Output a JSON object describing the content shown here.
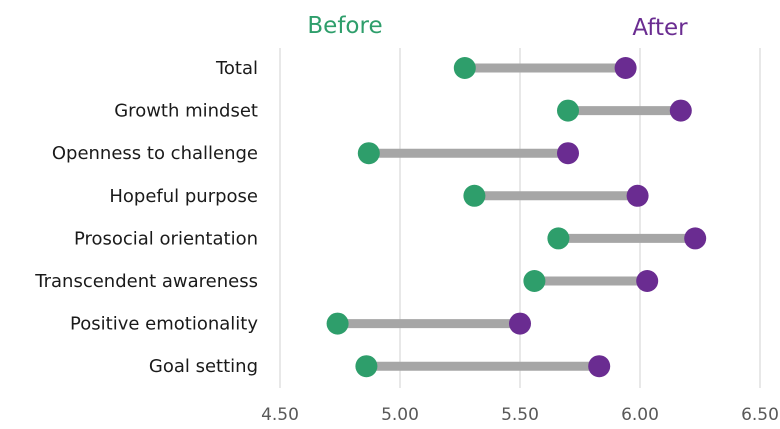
{
  "chart_data": {
    "type": "dumbbell",
    "title": "",
    "xlabel": "",
    "ylabel": "",
    "xlim": [
      4.5,
      6.5
    ],
    "x_ticks": [
      "4.50",
      "5.00",
      "5.50",
      "6.00",
      "6.50"
    ],
    "grid": true,
    "legend_placement": "top",
    "categories": [
      "Total",
      "Growth mindset",
      "Openness to challenge",
      "Hopeful purpose",
      "Prosocial orientation",
      "Transcendent awareness",
      "Positive emotionality",
      "Goal setting"
    ],
    "series": [
      {
        "name": "Before",
        "color": "#2e9e6b",
        "values": [
          5.27,
          5.7,
          4.87,
          5.31,
          5.66,
          5.56,
          4.74,
          4.86
        ]
      },
      {
        "name": "After",
        "color": "#6a2c91",
        "values": [
          5.94,
          6.17,
          5.7,
          5.99,
          6.23,
          6.03,
          5.5,
          5.83
        ]
      }
    ],
    "connector_color": "#a6a6a6",
    "gridline_color": "#d9d9d9"
  }
}
